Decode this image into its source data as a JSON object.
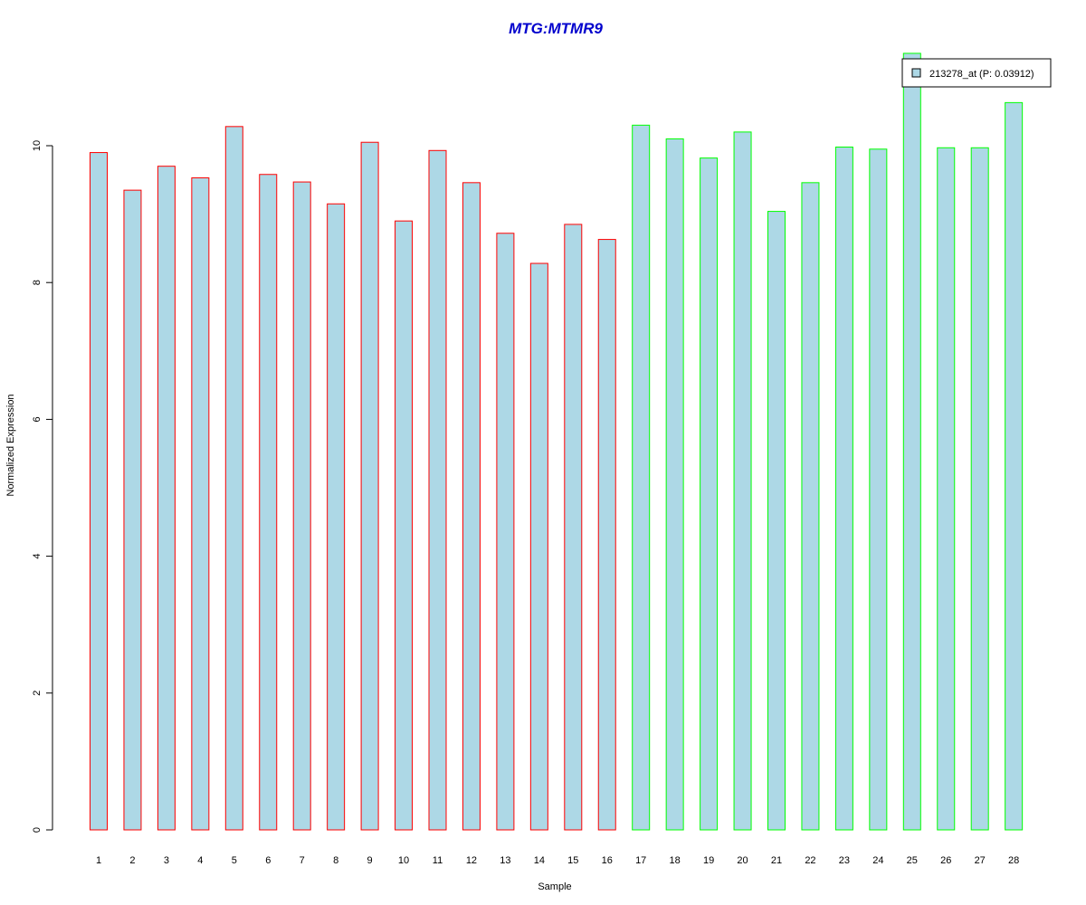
{
  "chart_data": {
    "type": "bar",
    "title": "MTG:MTMR9",
    "xlabel": "Sample",
    "ylabel": "Normalized Expression",
    "categories": [
      "1",
      "2",
      "3",
      "4",
      "5",
      "6",
      "7",
      "8",
      "9",
      "10",
      "11",
      "12",
      "13",
      "14",
      "15",
      "16",
      "17",
      "18",
      "19",
      "20",
      "21",
      "22",
      "23",
      "24",
      "25",
      "26",
      "27",
      "28"
    ],
    "series": [
      {
        "name": "213278_at (P: 0.03912)",
        "values": [
          9.9,
          9.35,
          9.7,
          9.53,
          10.28,
          9.58,
          9.47,
          9.15,
          10.05,
          8.9,
          9.93,
          9.46,
          8.72,
          8.28,
          8.85,
          8.63,
          10.3,
          10.1,
          9.82,
          10.2,
          9.04,
          9.46,
          9.98,
          9.95,
          11.35,
          9.97,
          9.97,
          10.63
        ],
        "fill": "#add8e6",
        "group": [
          "a",
          "a",
          "a",
          "a",
          "a",
          "a",
          "a",
          "a",
          "a",
          "a",
          "a",
          "a",
          "a",
          "a",
          "a",
          "a",
          "b",
          "b",
          "b",
          "b",
          "b",
          "b",
          "b",
          "b",
          "b",
          "b",
          "b",
          "b"
        ]
      }
    ],
    "group_border_colors": {
      "a": "#ff0000",
      "b": "#00ff00"
    },
    "yticks": [
      0,
      2,
      4,
      6,
      8,
      10
    ],
    "ylim": [
      0,
      11.35
    ],
    "legend_position": "top-right",
    "grid": false,
    "title_color": "#0000cd"
  }
}
